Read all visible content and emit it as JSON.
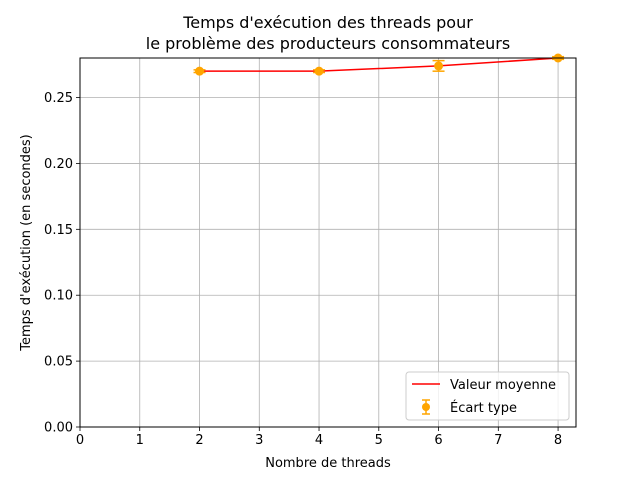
{
  "chart_data": {
    "type": "line",
    "title_lines": [
      "Temps d'exécution des threads pour",
      "le problème des producteurs consommateurs"
    ],
    "xlabel": "Nombre de threads",
    "ylabel": "Temps d'exécution (en secondes)",
    "xlim": [
      0,
      8.3
    ],
    "ylim": [
      0,
      0.28
    ],
    "xticks": [
      0,
      1,
      2,
      3,
      4,
      5,
      6,
      7,
      8
    ],
    "xtick_labels": [
      "0",
      "1",
      "2",
      "3",
      "4",
      "5",
      "6",
      "7",
      "8"
    ],
    "yticks": [
      0.0,
      0.05,
      0.1,
      0.15,
      0.2,
      0.25
    ],
    "ytick_labels": [
      "0.00",
      "0.05",
      "0.10",
      "0.15",
      "0.20",
      "0.25"
    ],
    "grid": true,
    "legend_position": "lower-right",
    "series": [
      {
        "name": "Valeur moyenne",
        "kind": "line",
        "color": "#ff0000",
        "x": [
          2,
          4,
          6,
          8
        ],
        "y": [
          0.27,
          0.27,
          0.274,
          0.28
        ]
      },
      {
        "name": "Écart type",
        "kind": "errorbar",
        "color": "#ffa500",
        "x": [
          2,
          4,
          6,
          8
        ],
        "y": [
          0.27,
          0.27,
          0.274,
          0.28
        ],
        "yerr": [
          0.001,
          0.001,
          0.004,
          0.001
        ]
      }
    ]
  }
}
